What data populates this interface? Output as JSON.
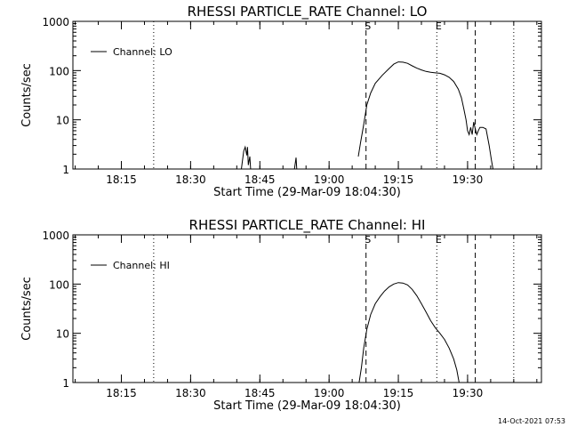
{
  "footer": {
    "timestamp": "14-Oct-2021 07:53"
  },
  "chart_data": [
    {
      "type": "line",
      "title": "RHESSI PARTICLE_RATE Channel: LO",
      "xlabel": "Start Time (29-Mar-09 18:04:30)",
      "ylabel": "Counts/sec",
      "x_unit": "minutes",
      "xlim": [
        "18:04:30",
        "19:46:00"
      ],
      "ylim": [
        1,
        1000
      ],
      "y_scale": "log",
      "x_ticks": [
        "18:15",
        "18:30",
        "18:45",
        "19:00",
        "19:15",
        "19:30"
      ],
      "y_ticks": [
        "1",
        "10",
        "100",
        "1000"
      ],
      "legend": {
        "position": "top-left",
        "label": "Channel: LO"
      },
      "series": [
        {
          "name": "Channel: LO",
          "segments": [
            [
              [
                "18:41:00",
                1
              ],
              [
                "18:41:30",
                2.3
              ],
              [
                "18:41:50",
                2.8
              ],
              [
                "18:42:10",
                1.9
              ],
              [
                "18:42:20",
                2.8
              ],
              [
                "18:42:30",
                1.2
              ],
              [
                "18:42:50",
                1.8
              ],
              [
                "18:43:00",
                1
              ]
            ],
            [
              [
                "18:52:30",
                1
              ],
              [
                "18:52:50",
                1.7
              ],
              [
                "18:53:00",
                1
              ]
            ],
            [
              [
                "19:06:20",
                1.8
              ],
              [
                "19:06:50",
                3.5
              ],
              [
                "19:07:30",
                8
              ],
              [
                "19:08:10",
                20
              ],
              [
                "19:09:00",
                35
              ],
              [
                "19:10:00",
                55
              ],
              [
                "19:11:30",
                80
              ],
              [
                "19:13:00",
                110
              ],
              [
                "19:14:00",
                135
              ],
              [
                "19:15:00",
                150
              ],
              [
                "19:16:00",
                148
              ],
              [
                "19:17:00",
                140
              ],
              [
                "19:18:00",
                125
              ],
              [
                "19:19:00",
                112
              ],
              [
                "19:20:00",
                103
              ],
              [
                "19:21:00",
                96
              ],
              [
                "19:22:00",
                92
              ],
              [
                "19:23:00",
                90
              ],
              [
                "19:24:00",
                88
              ],
              [
                "19:25:00",
                82
              ],
              [
                "19:26:00",
                73
              ],
              [
                "19:27:00",
                60
              ],
              [
                "19:28:00",
                42
              ],
              [
                "19:28:40",
                28
              ],
              [
                "19:29:10",
                17
              ],
              [
                "19:29:40",
                10
              ],
              [
                "19:30:00",
                6
              ],
              [
                "19:30:20",
                5
              ],
              [
                "19:30:40",
                7
              ],
              [
                "19:31:00",
                5
              ],
              [
                "19:31:20",
                9
              ],
              [
                "19:31:40",
                6.5
              ],
              [
                "19:32:00",
                5
              ],
              [
                "19:32:20",
                6
              ],
              [
                "19:32:40",
                7
              ],
              [
                "19:33:20",
                7
              ],
              [
                "19:34:00",
                6.5
              ],
              [
                "19:34:40",
                3
              ],
              [
                "19:35:10",
                1.5
              ],
              [
                "19:35:30",
                1
              ]
            ]
          ]
        }
      ],
      "markers": [
        {
          "time": "18:22:00",
          "style": "dotted",
          "label": ""
        },
        {
          "time": "19:08:00",
          "style": "dashed",
          "label": "S"
        },
        {
          "time": "19:23:20",
          "style": "dotted",
          "label": "E"
        },
        {
          "time": "19:31:40",
          "style": "dashed",
          "label": ""
        },
        {
          "time": "19:40:00",
          "style": "dotted",
          "label": ""
        }
      ]
    },
    {
      "type": "line",
      "title": "RHESSI PARTICLE_RATE Channel: HI",
      "xlabel": "Start Time (29-Mar-09 18:04:30)",
      "ylabel": "Counts/sec",
      "x_unit": "minutes",
      "xlim": [
        "18:04:30",
        "19:46:00"
      ],
      "ylim": [
        1,
        1000
      ],
      "y_scale": "log",
      "x_ticks": [
        "18:15",
        "18:30",
        "18:45",
        "19:00",
        "19:15",
        "19:30"
      ],
      "y_ticks": [
        "1",
        "10",
        "100",
        "1000"
      ],
      "legend": {
        "position": "top-left",
        "label": "Channel: HI"
      },
      "series": [
        {
          "name": "Channel: HI",
          "segments": [
            [
              [
                "19:06:30",
                1
              ],
              [
                "19:07:00",
                2
              ],
              [
                "19:07:30",
                5
              ],
              [
                "19:08:10",
                12
              ],
              [
                "19:09:00",
                24
              ],
              [
                "19:10:00",
                40
              ],
              [
                "19:11:00",
                55
              ],
              [
                "19:12:00",
                72
              ],
              [
                "19:13:00",
                88
              ],
              [
                "19:14:00",
                100
              ],
              [
                "19:15:00",
                107
              ],
              [
                "19:16:00",
                105
              ],
              [
                "19:17:00",
                96
              ],
              [
                "19:18:00",
                78
              ],
              [
                "19:19:00",
                58
              ],
              [
                "19:20:00",
                40
              ],
              [
                "19:21:00",
                27
              ],
              [
                "19:22:00",
                18
              ],
              [
                "19:23:00",
                13
              ],
              [
                "19:24:00",
                10
              ],
              [
                "19:25:00",
                7.5
              ],
              [
                "19:26:00",
                5
              ],
              [
                "19:27:00",
                3
              ],
              [
                "19:27:40",
                1.8
              ],
              [
                "19:28:10",
                1
              ]
            ]
          ]
        }
      ],
      "markers": [
        {
          "time": "18:22:00",
          "style": "dotted",
          "label": ""
        },
        {
          "time": "19:08:00",
          "style": "dashed",
          "label": "S"
        },
        {
          "time": "19:23:20",
          "style": "dotted",
          "label": "E"
        },
        {
          "time": "19:31:40",
          "style": "dashed",
          "label": ""
        },
        {
          "time": "19:40:00",
          "style": "dotted",
          "label": ""
        }
      ]
    }
  ]
}
